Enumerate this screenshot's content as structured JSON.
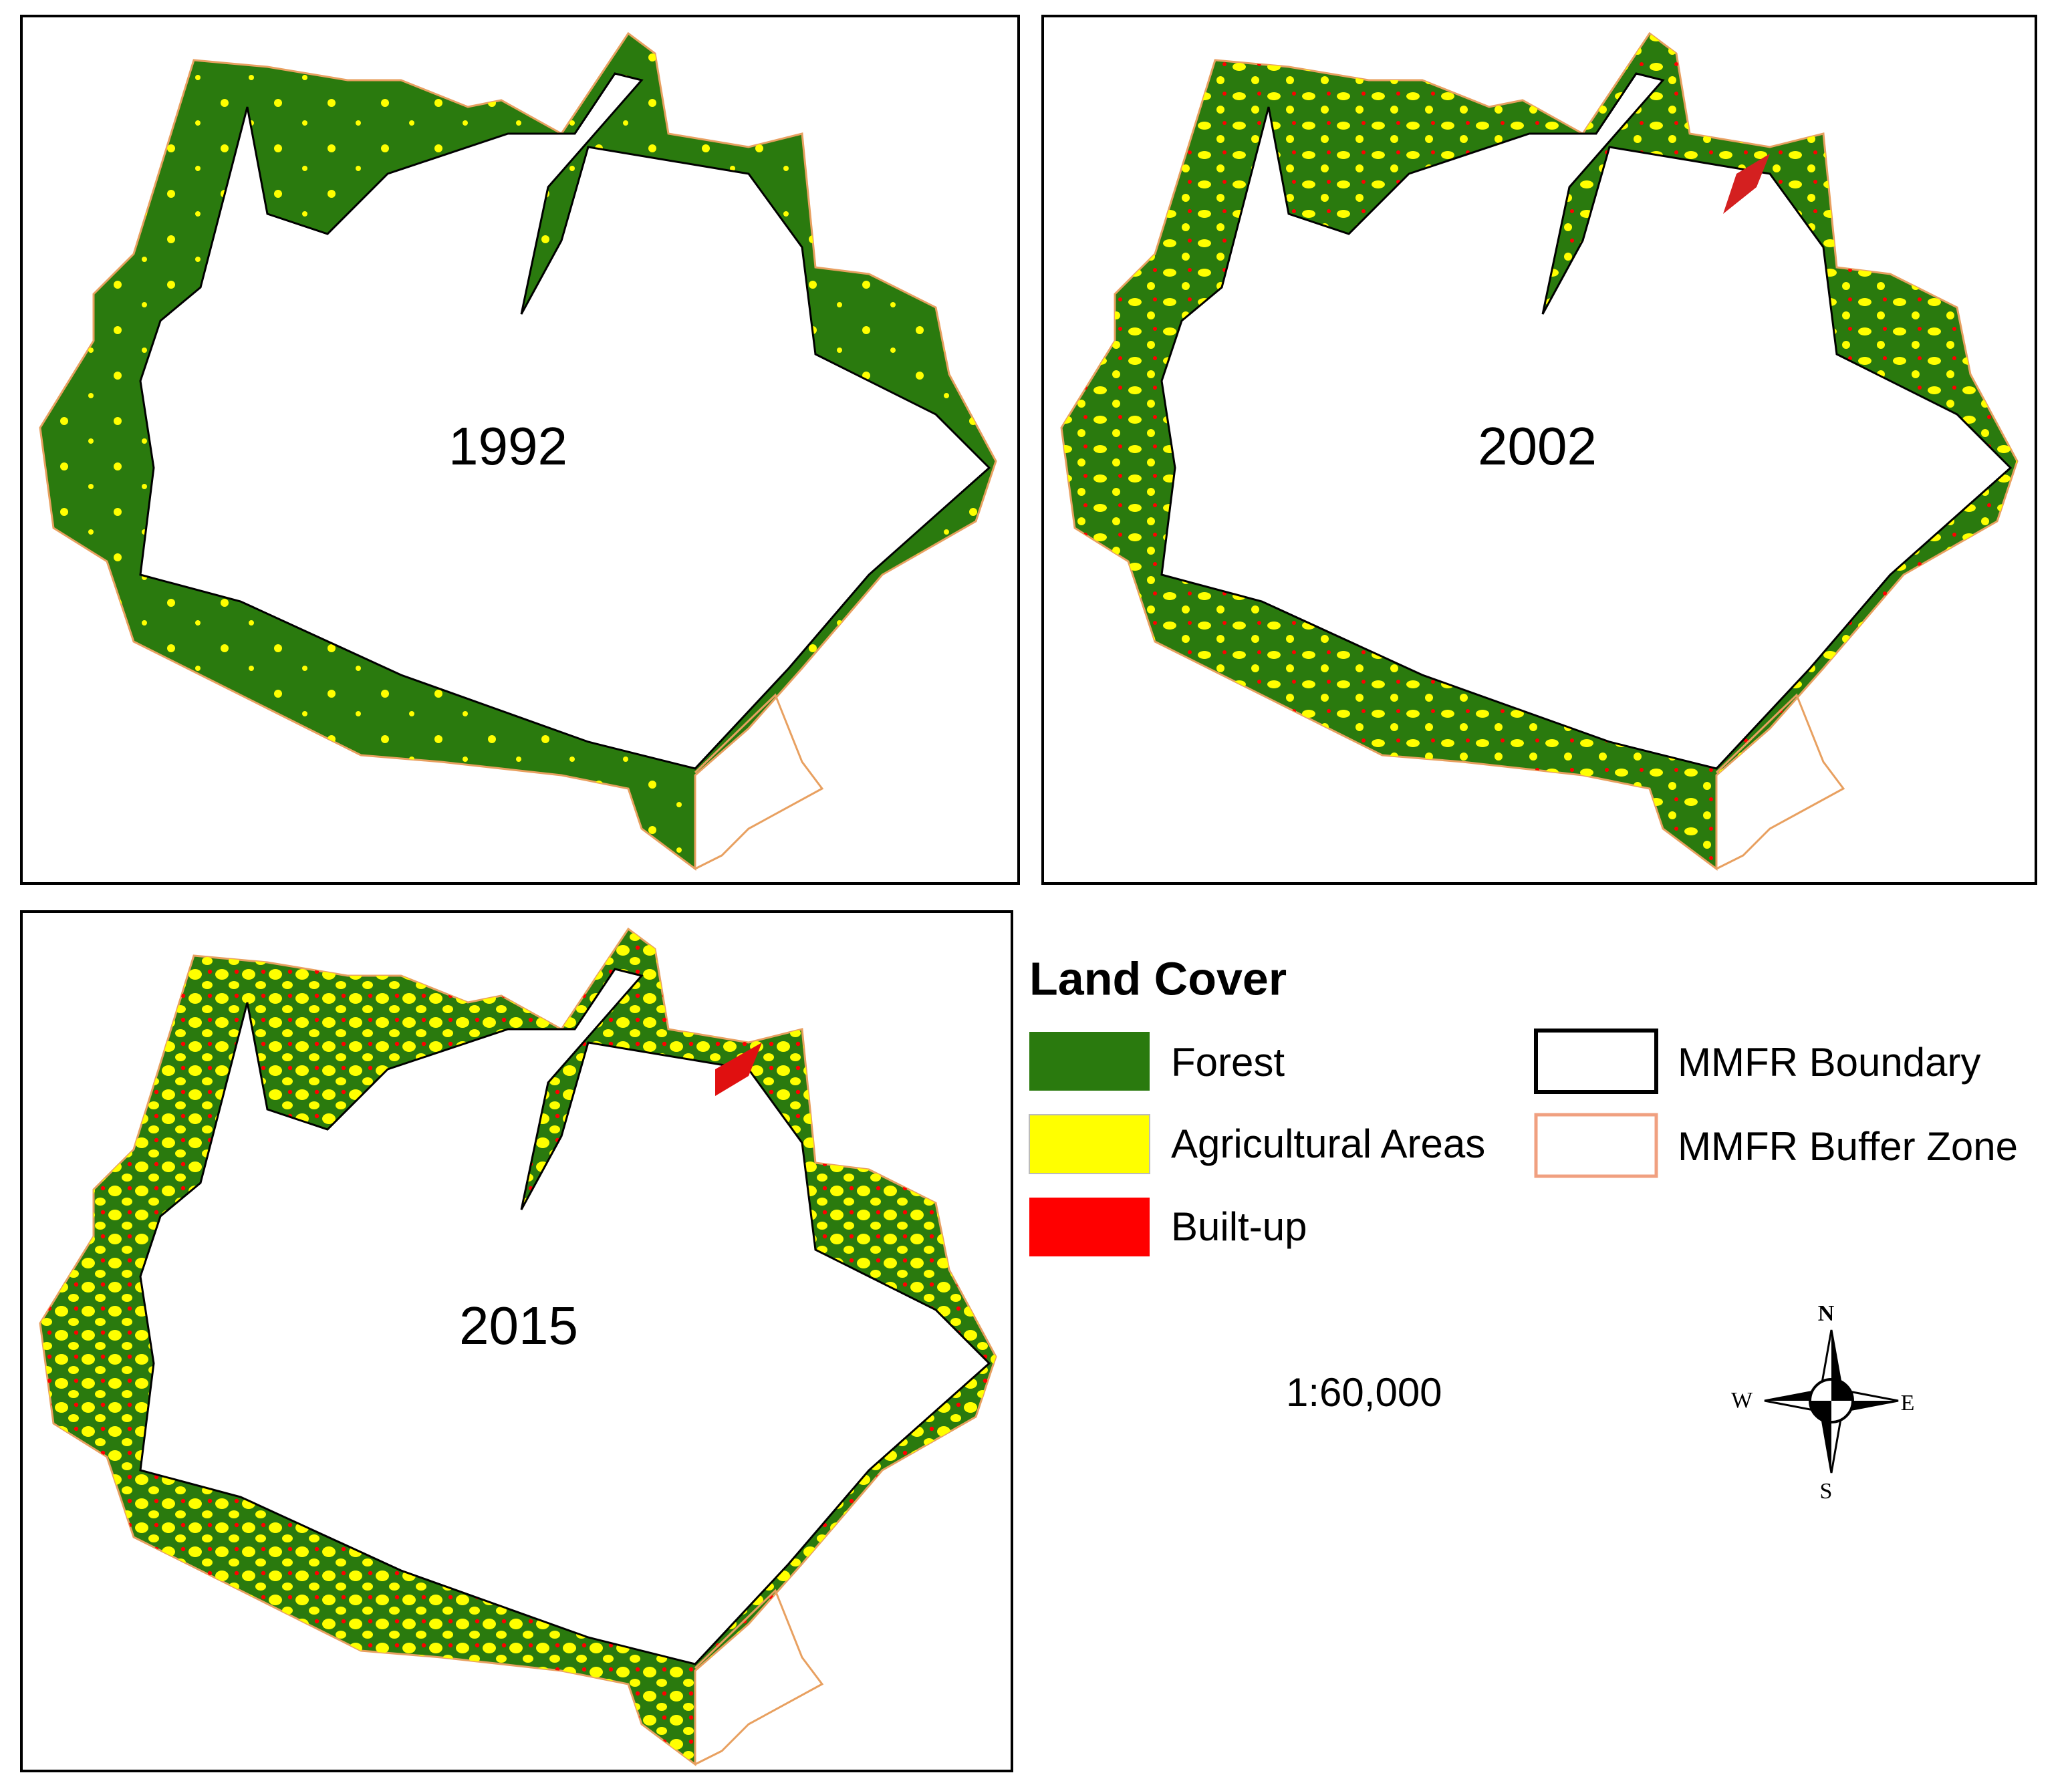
{
  "panels": [
    {
      "label": "1992"
    },
    {
      "label": "2002"
    },
    {
      "label": "2015"
    }
  ],
  "legend": {
    "title": "Land Cover",
    "items": [
      {
        "label": "Forest"
      },
      {
        "label": "Agricultural Areas"
      },
      {
        "label": "Built-up"
      },
      {
        "label": "MMFR Boundary"
      },
      {
        "label": "MMFR Buffer Zone"
      }
    ]
  },
  "scale": "1:60,000",
  "compass": {
    "n": "N",
    "s": "S",
    "e": "E",
    "w": "W"
  }
}
